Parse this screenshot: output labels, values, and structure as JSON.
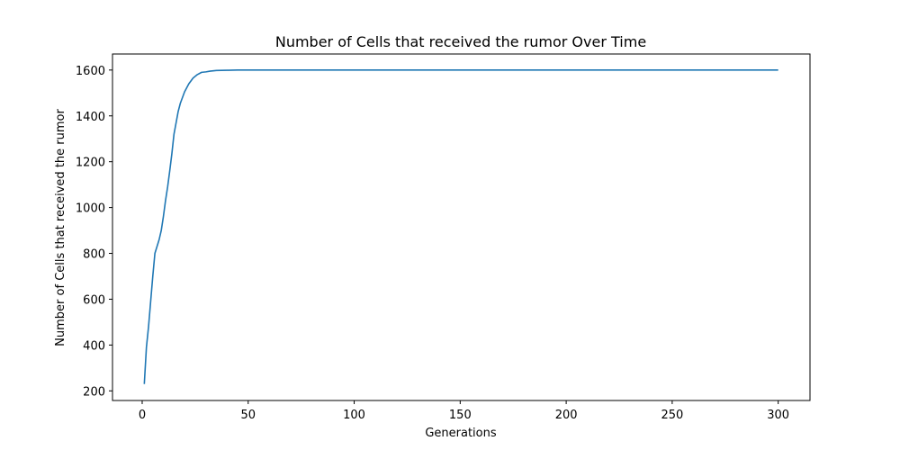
{
  "chart_data": {
    "type": "line",
    "title": "Number of Cells that received the rumor Over Time",
    "xlabel": "Generations",
    "ylabel": "Number of Cells that received the rumor",
    "xlim": [
      -14,
      315
    ],
    "ylim": [
      158,
      1670
    ],
    "x_ticks": [
      0,
      50,
      100,
      150,
      200,
      250,
      300
    ],
    "y_ticks": [
      200,
      400,
      600,
      800,
      1000,
      1200,
      1400,
      1600
    ],
    "grid": false,
    "legend": "none",
    "line_color": "#1f77b4",
    "series": [
      {
        "x": [
          1,
          2,
          3,
          4,
          5,
          6,
          7,
          8,
          9,
          10,
          11,
          12,
          13,
          14,
          15,
          16,
          17,
          18,
          19,
          20,
          22,
          24,
          26,
          28,
          30,
          32,
          35,
          40,
          45,
          50,
          60,
          80,
          100,
          150,
          200,
          250,
          300
        ],
        "values": [
          230,
          390,
          480,
          590,
          700,
          800,
          830,
          860,
          900,
          960,
          1030,
          1090,
          1160,
          1235,
          1320,
          1370,
          1420,
          1455,
          1480,
          1505,
          1540,
          1565,
          1580,
          1590,
          1592,
          1595,
          1598,
          1599,
          1600,
          1600,
          1600,
          1600,
          1600,
          1600,
          1600,
          1600,
          1600
        ]
      }
    ]
  }
}
